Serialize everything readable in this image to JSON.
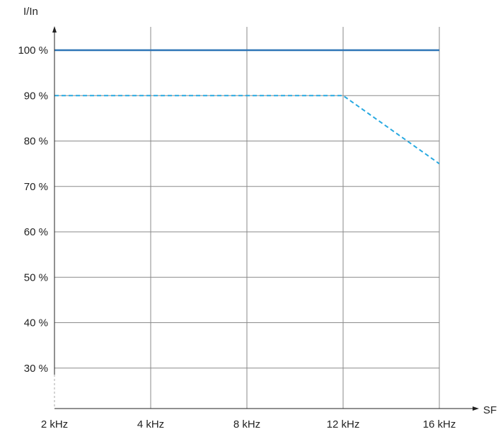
{
  "chart_data": {
    "type": "line",
    "title": "",
    "xlabel": "SF",
    "ylabel": "I/In",
    "categories": [
      "2 kHz",
      "4 kHz",
      "8 kHz",
      "12 kHz",
      "16 kHz"
    ],
    "y_ticks": [
      "100 %",
      "90 %",
      "80 %",
      "70 %",
      "60 %",
      "50 %",
      "40 %",
      "30 %"
    ],
    "y_tick_values": [
      100,
      90,
      80,
      70,
      60,
      50,
      40,
      30
    ],
    "ylim": [
      20,
      100
    ],
    "grid": true,
    "legend": "none",
    "series": [
      {
        "values": [
          100,
          100,
          100,
          100,
          100
        ],
        "style": "solid",
        "color": "#2e75b6"
      },
      {
        "values": [
          90,
          90,
          90,
          90,
          75
        ],
        "style": "dashed",
        "color": "#27a9e1"
      }
    ],
    "colors": {
      "grid": "#8a8a8a",
      "axis": "#222222"
    }
  }
}
